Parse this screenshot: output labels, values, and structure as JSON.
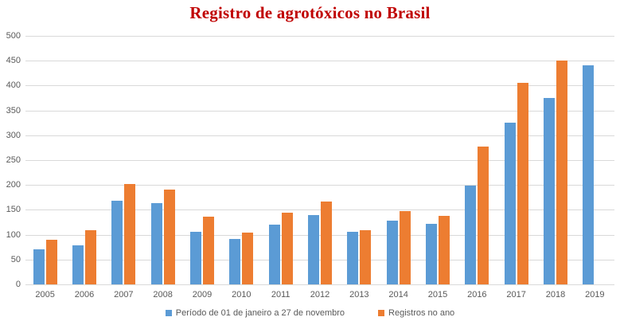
{
  "colors": {
    "title": "#c00000",
    "axis_text": "#595959",
    "gridline": "#d9d9d9",
    "series_blue": "#5b9bd5",
    "series_orange": "#ed7d31",
    "background": "#ffffff"
  },
  "chart_data": {
    "type": "bar",
    "title": "Registro de agrotóxicos no Brasil",
    "categories": [
      "2005",
      "2006",
      "2007",
      "2008",
      "2009",
      "2010",
      "2011",
      "2012",
      "2013",
      "2014",
      "2015",
      "2016",
      "2017",
      "2018",
      "2019"
    ],
    "series": [
      {
        "name": "Período de 01 de janeiro a 27 de novembro",
        "color": "#5b9bd5",
        "values": [
          70,
          78,
          169,
          164,
          106,
          92,
          120,
          140,
          105,
          128,
          122,
          198,
          325,
          375,
          440
        ]
      },
      {
        "name": "Registros no ano",
        "color": "#ed7d31",
        "values": [
          90,
          109,
          202,
          190,
          136,
          104,
          144,
          167,
          109,
          148,
          138,
          277,
          405,
          450,
          null
        ]
      }
    ],
    "xlabel": "",
    "ylabel": "",
    "ylim": [
      0,
      500
    ],
    "y_ticks": [
      0,
      50,
      100,
      150,
      200,
      250,
      300,
      350,
      400,
      450,
      500
    ],
    "grid": true,
    "legend_position": "bottom"
  }
}
